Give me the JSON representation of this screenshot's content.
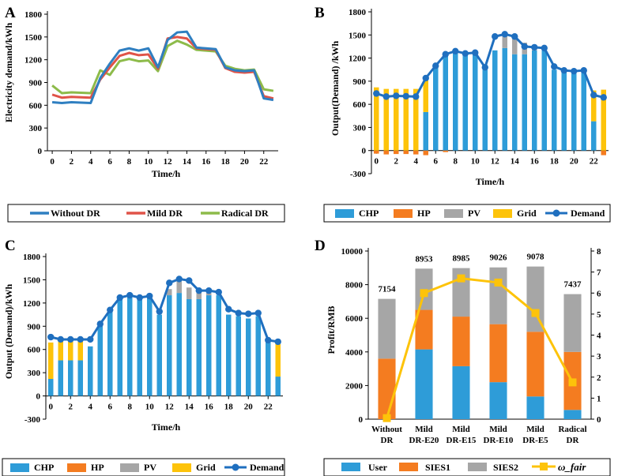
{
  "colors": {
    "chp": "#2e9cd8",
    "hp": "#f47c20",
    "pv": "#a6a6a6",
    "grid": "#fdc30a",
    "demand": "#1f6fbf",
    "without": "#2f7fc1",
    "mild": "#e05348",
    "radical": "#8dbb4a",
    "user": "#2e9cd8",
    "sies1": "#f47c20",
    "sies2": "#a6a6a6",
    "fair": "#fdc30a"
  },
  "chart_data": [
    {
      "panel": "A",
      "type": "line",
      "ylabel": "Electricity demand/kWh",
      "xlabel": "Time/h",
      "ylim": [
        0,
        1800
      ],
      "yticks": [
        "0",
        "300",
        "600",
        "900",
        "1200",
        "1500",
        "1800"
      ],
      "xticks": [
        "0",
        "2",
        "4",
        "6",
        "8",
        "10",
        "12",
        "14",
        "16",
        "18",
        "20",
        "22"
      ],
      "x": [
        0,
        1,
        2,
        3,
        4,
        5,
        6,
        7,
        8,
        9,
        10,
        11,
        12,
        13,
        14,
        15,
        16,
        17,
        18,
        19,
        20,
        21,
        22,
        23
      ],
      "series": [
        {
          "name": "Without DR",
          "values": [
            640,
            630,
            640,
            635,
            630,
            960,
            1150,
            1320,
            1350,
            1320,
            1350,
            1100,
            1460,
            1560,
            1570,
            1360,
            1350,
            1340,
            1100,
            1060,
            1050,
            1060,
            690,
            670
          ]
        },
        {
          "name": "Mild DR",
          "values": [
            740,
            700,
            710,
            705,
            700,
            940,
            1100,
            1250,
            1290,
            1260,
            1270,
            1080,
            1480,
            1500,
            1480,
            1350,
            1340,
            1330,
            1090,
            1040,
            1030,
            1040,
            720,
            690
          ]
        },
        {
          "name": "Radical DR",
          "values": [
            860,
            760,
            770,
            765,
            760,
            1060,
            1000,
            1180,
            1210,
            1180,
            1190,
            1050,
            1380,
            1450,
            1400,
            1330,
            1320,
            1310,
            1120,
            1080,
            1060,
            1070,
            810,
            790
          ]
        }
      ]
    },
    {
      "panel": "B",
      "type": "bar",
      "ylabel": "Output(Demand) /kWh",
      "xlabel": "Time/h",
      "ylim": [
        -300,
        1800
      ],
      "yticks": [
        "-300",
        "0",
        "300",
        "600",
        "900",
        "1200",
        "1500",
        "1800"
      ],
      "xticks": [
        "0",
        "2",
        "4",
        "6",
        "8",
        "10",
        "12",
        "14",
        "16",
        "18",
        "20",
        "22"
      ],
      "x": [
        0,
        1,
        2,
        3,
        4,
        5,
        6,
        7,
        8,
        9,
        10,
        11,
        12,
        13,
        14,
        15,
        16,
        17,
        18,
        19,
        20,
        21,
        22,
        23
      ],
      "series": [
        {
          "name": "CHP",
          "values": [
            0,
            0,
            0,
            0,
            0,
            500,
            1100,
            1250,
            1280,
            1250,
            1280,
            1050,
            1300,
            1330,
            1250,
            1250,
            1300,
            1300,
            1050,
            1030,
            1000,
            1030,
            380,
            0
          ]
        },
        {
          "name": "HP",
          "values": [
            -40,
            -50,
            -45,
            -45,
            -50,
            -60,
            0,
            -20,
            0,
            0,
            0,
            0,
            0,
            0,
            0,
            0,
            0,
            0,
            0,
            0,
            0,
            0,
            0,
            -60
          ]
        },
        {
          "name": "PV",
          "values": [
            0,
            0,
            0,
            0,
            0,
            0,
            0,
            0,
            0,
            0,
            0,
            0,
            0,
            150,
            200,
            150,
            30,
            0,
            0,
            0,
            0,
            0,
            0,
            0
          ]
        },
        {
          "name": "Grid",
          "values": [
            820,
            800,
            800,
            800,
            800,
            450,
            0,
            0,
            0,
            0,
            0,
            0,
            0,
            0,
            0,
            0,
            0,
            0,
            0,
            0,
            0,
            0,
            400,
            790
          ]
        }
      ],
      "line": {
        "name": "Demand",
        "values": [
          740,
          700,
          710,
          705,
          700,
          940,
          1100,
          1250,
          1290,
          1260,
          1270,
          1080,
          1480,
          1510,
          1480,
          1350,
          1340,
          1330,
          1090,
          1040,
          1030,
          1040,
          720,
          690
        ]
      }
    },
    {
      "panel": "C",
      "type": "bar",
      "ylabel": "Output (Demand)/kWh",
      "xlabel": "Time/h",
      "ylim": [
        -300,
        1800
      ],
      "yticks": [
        "-300",
        "0",
        "300",
        "600",
        "900",
        "1200",
        "1500",
        "1800"
      ],
      "xticks": [
        "0",
        "2",
        "4",
        "6",
        "8",
        "10",
        "12",
        "14",
        "16",
        "18",
        "20",
        "22"
      ],
      "x": [
        0,
        1,
        2,
        3,
        4,
        5,
        6,
        7,
        8,
        9,
        10,
        11,
        12,
        13,
        14,
        15,
        16,
        17,
        18,
        19,
        20,
        21,
        22,
        23
      ],
      "series": [
        {
          "name": "CHP",
          "values": [
            220,
            460,
            460,
            460,
            640,
            930,
            1100,
            1250,
            1280,
            1250,
            1280,
            1050,
            1300,
            1330,
            1250,
            1250,
            1300,
            1300,
            1050,
            1030,
            1000,
            1030,
            720,
            250
          ]
        },
        {
          "name": "HP",
          "values": [
            0,
            0,
            0,
            0,
            0,
            0,
            0,
            0,
            0,
            0,
            0,
            0,
            0,
            0,
            0,
            0,
            0,
            0,
            0,
            0,
            0,
            0,
            0,
            0
          ]
        },
        {
          "name": "PV",
          "values": [
            0,
            0,
            0,
            0,
            0,
            0,
            0,
            0,
            0,
            0,
            0,
            0,
            80,
            150,
            150,
            100,
            30,
            0,
            0,
            0,
            0,
            0,
            0,
            0
          ]
        },
        {
          "name": "Grid",
          "values": [
            470,
            250,
            250,
            250,
            0,
            0,
            0,
            0,
            0,
            0,
            0,
            0,
            0,
            0,
            0,
            0,
            0,
            0,
            0,
            0,
            0,
            0,
            0,
            440
          ]
        }
      ],
      "line": {
        "name": "Demand",
        "values": [
          760,
          730,
          730,
          730,
          730,
          930,
          1110,
          1270,
          1300,
          1270,
          1290,
          1090,
          1460,
          1510,
          1490,
          1360,
          1360,
          1340,
          1120,
          1070,
          1060,
          1070,
          720,
          700
        ]
      }
    },
    {
      "panel": "D",
      "type": "bar",
      "ylabel": "Profit/RMB",
      "xlabel": "",
      "ylim": [
        0,
        10000
      ],
      "yticks": [
        "0",
        "2000",
        "4000",
        "6000",
        "8000",
        "10000"
      ],
      "y2lim": [
        0,
        8
      ],
      "y2ticks": [
        "0",
        "1",
        "2",
        "3",
        "4",
        "5",
        "6",
        "7",
        "8"
      ],
      "categories": [
        [
          "Without",
          "DR"
        ],
        [
          "Mild",
          "DR-E20"
        ],
        [
          "Mild",
          "DR-E15"
        ],
        [
          "Mild",
          "DR-E10"
        ],
        [
          "Mild",
          "DR-E5"
        ],
        [
          "Radical",
          "DR"
        ]
      ],
      "totals": [
        "7154",
        "8953",
        "8985",
        "9026",
        "9078",
        "7437"
      ],
      "series": [
        {
          "name": "User",
          "values": [
            0,
            4150,
            3150,
            2200,
            1350,
            550
          ]
        },
        {
          "name": "SIES1",
          "values": [
            3600,
            2350,
            2950,
            3450,
            3850,
            3450
          ]
        },
        {
          "name": "SIES2",
          "values": [
            3554,
            2453,
            2885,
            3376,
            3878,
            3437
          ]
        }
      ],
      "line": {
        "name": "ω_fair",
        "values": [
          0.05,
          6.0,
          6.7,
          6.5,
          5.05,
          1.75
        ]
      }
    }
  ],
  "panels": {
    "a": {
      "letter": "A",
      "ylabel": "Electricity demand/kWh",
      "xlabel": "Time/h",
      "legend": [
        "Without DR",
        "Mild DR",
        "Radical DR"
      ]
    },
    "b": {
      "letter": "B",
      "ylabel": "Output(Demand) /kWh",
      "xlabel": "Time/h",
      "legend": [
        "CHP",
        "HP",
        "PV",
        "Grid",
        "Demand"
      ]
    },
    "c": {
      "letter": "C",
      "ylabel": "Output (Demand)/kWh",
      "xlabel": "Time/h",
      "legend": [
        "CHP",
        "HP",
        "PV",
        "Grid",
        "Demand"
      ]
    },
    "d": {
      "letter": "D",
      "ylabel": "Profit/RMB",
      "legend": [
        "User",
        "SIES1",
        "SIES2",
        "ω_fair"
      ]
    }
  }
}
